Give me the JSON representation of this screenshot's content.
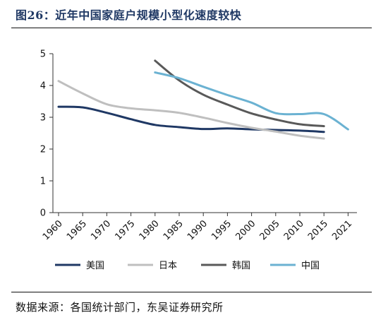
{
  "figure": {
    "title": "图26：近年中国家庭户规模小型化速度较快",
    "source": "数据来源：各国统计部门，东吴证券研究所"
  },
  "chart_data": {
    "type": "line",
    "title": "近年中国家庭户规模小型化速度较快",
    "xlabel": "",
    "ylabel": "",
    "x_ticks": [
      "1960",
      "1965",
      "1970",
      "1975",
      "1980",
      "1985",
      "1990",
      "1995",
      "2000",
      "2005",
      "2010",
      "2015",
      "2021"
    ],
    "y_ticks": [
      "0",
      "1",
      "2",
      "3",
      "4",
      "5"
    ],
    "ylim": [
      0,
      5
    ],
    "grid": false,
    "legend_position": "bottom",
    "series": [
      {
        "name": "美国",
        "color": "#1f3864",
        "x": [
          1960,
          1965,
          1970,
          1975,
          1980,
          1985,
          1990,
          1995,
          2000,
          2005,
          2010,
          2015
        ],
        "values": [
          3.33,
          3.31,
          3.14,
          2.94,
          2.76,
          2.69,
          2.63,
          2.65,
          2.62,
          2.6,
          2.58,
          2.54
        ]
      },
      {
        "name": "日本",
        "color": "#bfbfbf",
        "x": [
          1960,
          1965,
          1970,
          1975,
          1980,
          1985,
          1990,
          1995,
          2000,
          2005,
          2010,
          2015
        ],
        "values": [
          4.14,
          3.75,
          3.41,
          3.28,
          3.22,
          3.14,
          2.99,
          2.82,
          2.67,
          2.55,
          2.42,
          2.33
        ]
      },
      {
        "name": "韩国",
        "color": "#595959",
        "x": [
          1980,
          1985,
          1990,
          1995,
          2000,
          2005,
          2010,
          2015
        ],
        "values": [
          4.78,
          4.16,
          3.71,
          3.4,
          3.12,
          2.93,
          2.78,
          2.72
        ]
      },
      {
        "name": "中国",
        "color": "#6bb2d2",
        "x": [
          1980,
          1985,
          1990,
          1995,
          2000,
          2005,
          2010,
          2015,
          2021
        ],
        "values": [
          4.41,
          4.23,
          3.96,
          3.7,
          3.46,
          3.13,
          3.1,
          3.1,
          2.62
        ]
      }
    ]
  }
}
